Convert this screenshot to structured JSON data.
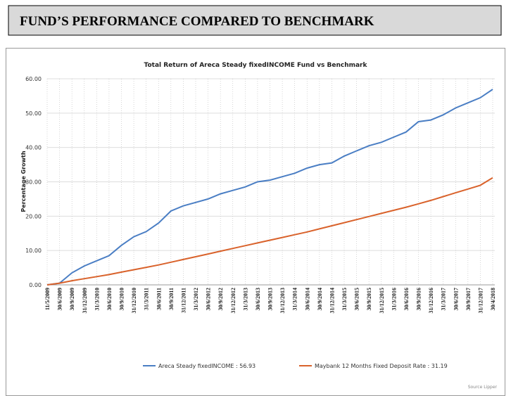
{
  "header": {
    "title": "FUND’S PERFORMANCE COMPARED TO BENCHMARK"
  },
  "chart_data": {
    "type": "line",
    "title": "Total Return of Areca Steady fixedINCOME Fund vs Benchmark",
    "y_label": "Percentage Growth",
    "source": "Source Lipper",
    "categories": [
      "11/5/2009",
      "30/6/2009",
      "30/9/2009",
      "31/12/2009",
      "31/3/2010",
      "30/6/2010",
      "30/9/2010",
      "31/12/2010",
      "31/3/2011",
      "30/6/2011",
      "30/9/2011",
      "31/12/2011",
      "31/3/2012",
      "30/6/2012",
      "30/9/2012",
      "31/12/2012",
      "31/3/2013",
      "30/6/2013",
      "30/9/2013",
      "31/12/2013",
      "31/3/2014",
      "30/6/2014",
      "30/9/2014",
      "31/12/2014",
      "31/3/2015",
      "30/6/2015",
      "30/9/2015",
      "31/12/2015",
      "31/3/2016",
      "30/6/2016",
      "30/9/2016",
      "31/12/2016",
      "31/3/2017",
      "30/6/2017",
      "30/9/2017",
      "31/12/2017",
      "30/4/2018"
    ],
    "series": [
      {
        "name": "Areca Steady fixedINCOME : 56.93",
        "color": "#4a7ec4",
        "values": [
          0,
          0.5,
          3.5,
          5.5,
          7,
          8.5,
          11.5,
          14,
          15.5,
          18,
          21.5,
          23,
          24,
          25,
          26.5,
          27.5,
          28.5,
          30,
          30.5,
          31.5,
          32.5,
          34,
          35,
          35.5,
          37.5,
          39,
          40.5,
          41.5,
          43,
          44.5,
          47.5,
          48,
          49.5,
          51.5,
          53,
          54.5,
          56.93
        ]
      },
      {
        "name": "Maybank 12 Months Fixed Deposit Rate : 31.19",
        "color": "#d9622b",
        "values": [
          0,
          0.5,
          1.2,
          1.8,
          2.4,
          3.0,
          3.7,
          4.4,
          5.1,
          5.8,
          6.6,
          7.4,
          8.2,
          9.0,
          9.8,
          10.6,
          11.4,
          12.2,
          13.0,
          13.8,
          14.6,
          15.4,
          16.3,
          17.2,
          18.1,
          19.0,
          19.9,
          20.8,
          21.7,
          22.6,
          23.6,
          24.6,
          25.7,
          26.8,
          27.9,
          29.0,
          31.19
        ]
      }
    ],
    "ylim": [
      0,
      60
    ],
    "yticks": [
      {
        "value": 0,
        "label": "0.00"
      },
      {
        "value": 10,
        "label": "10.00"
      },
      {
        "value": 20,
        "label": "20.00"
      },
      {
        "value": 30,
        "label": "30.00"
      },
      {
        "value": 40,
        "label": "40.00"
      },
      {
        "value": 50,
        "label": "50.00"
      },
      {
        "value": 60,
        "label": "60.00"
      }
    ],
    "grid": true,
    "legend": "bottom"
  }
}
